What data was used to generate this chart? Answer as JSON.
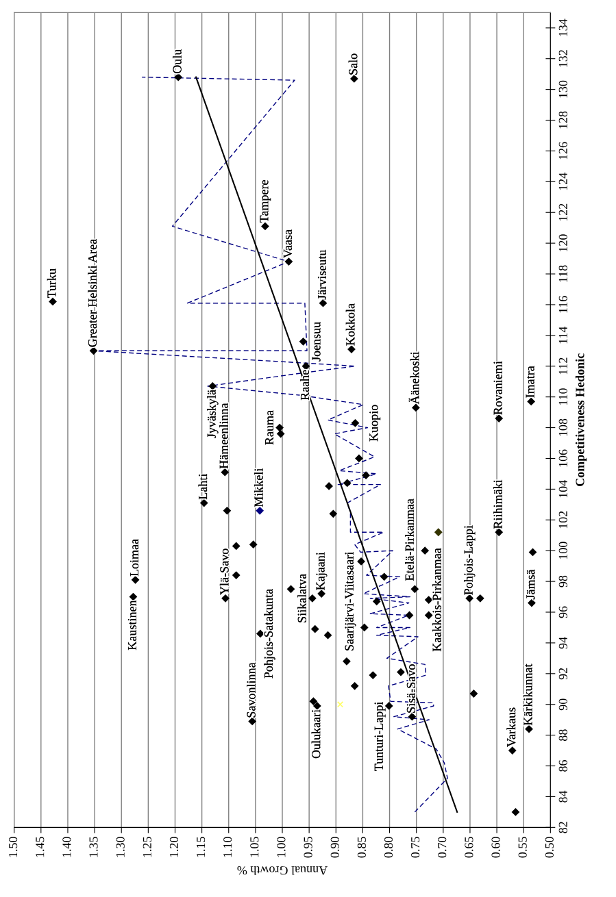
{
  "chart_data": {
    "type": "scatter",
    "xlabel": "Annual Growth %",
    "ylabel": "Competitiveness Hedonic",
    "xlim": [
      1.5,
      0.5
    ],
    "xticks": [
      {
        "value": 1.5,
        "label": "1.50"
      },
      {
        "value": 1.45,
        "label": "1.45"
      },
      {
        "value": 1.4,
        "label": "1.40"
      },
      {
        "value": 1.35,
        "label": "1.35"
      },
      {
        "value": 1.3,
        "label": "1.30"
      },
      {
        "value": 1.25,
        "label": "1.25"
      },
      {
        "value": 1.2,
        "label": "1.20"
      },
      {
        "value": 1.15,
        "label": "1.15"
      },
      {
        "value": 1.1,
        "label": "1.10"
      },
      {
        "value": 1.05,
        "label": "1.05"
      },
      {
        "value": 1.0,
        "label": "1.00"
      },
      {
        "value": 0.95,
        "label": "0.95"
      },
      {
        "value": 0.9,
        "label": "0.90"
      },
      {
        "value": 0.85,
        "label": "0.85"
      },
      {
        "value": 0.8,
        "label": "0.80"
      },
      {
        "value": 0.75,
        "label": "0.75"
      },
      {
        "value": 0.7,
        "label": "0.70"
      },
      {
        "value": 0.65,
        "label": "0.65"
      },
      {
        "value": 0.6,
        "label": "0.60"
      },
      {
        "value": 0.55,
        "label": "0.55"
      },
      {
        "value": 0.5,
        "label": "0.50"
      }
    ],
    "ylim": [
      82,
      135
    ],
    "yticks": [
      82,
      84,
      86,
      88,
      90,
      92,
      94,
      96,
      98,
      100,
      102,
      104,
      106,
      108,
      110,
      112,
      114,
      116,
      118,
      120,
      122,
      124,
      126,
      128,
      130,
      132,
      134
    ],
    "grid": "x",
    "series": [
      {
        "marker": "diamond",
        "x": [
          1.194,
          1.032,
          0.988,
          1.428,
          0.866,
          1.352,
          1.13,
          0.961,
          0.956,
          1.005,
          1.003,
          1.107,
          1.146,
          1.103,
          1.042,
          1.086,
          1.054,
          1.086,
          1.106,
          1.274,
          1.278,
          0.924,
          0.871,
          0.864,
          0.751,
          0.596,
          0.536,
          0.857,
          0.844,
          0.913,
          0.879,
          0.905,
          0.709,
          0.596,
          0.734,
          0.533,
          0.853,
          0.81,
          0.753,
          0.927,
          0.944,
          0.824,
          0.727,
          0.651,
          0.631,
          0.535,
          0.939,
          0.915,
          0.847,
          0.763,
          0.727,
          0.88,
          0.831,
          0.779,
          0.865,
          0.942,
          0.935,
          0.801,
          0.758,
          0.643,
          0.571,
          0.54,
          0.565,
          1.056,
          1.041,
          0.984
        ],
        "values": [
          130.8,
          121.1,
          118.8,
          116.2,
          130.7,
          113.0,
          110.7,
          113.6,
          112.0,
          108.0,
          107.6,
          105.1,
          103.1,
          102.6,
          102.6,
          100.3,
          100.4,
          98.4,
          96.9,
          98.1,
          97.0,
          116.1,
          113.1,
          108.3,
          109.3,
          108.6,
          109.7,
          106.0,
          104.9,
          104.2,
          104.4,
          102.4,
          101.2,
          101.2,
          100.0,
          99.9,
          99.3,
          98.3,
          97.5,
          97.2,
          96.9,
          96.7,
          96.8,
          96.9,
          96.9,
          96.6,
          94.9,
          94.5,
          95.0,
          95.8,
          95.8,
          92.8,
          91.9,
          92.1,
          91.2,
          90.2,
          89.9,
          89.9,
          89.2,
          90.7,
          87.0,
          88.4,
          83.0,
          88.9,
          94.6,
          97.5
        ],
        "colors": [
          "#000000",
          "#000000",
          "#000000",
          "#000000",
          "#000000",
          "#000000",
          "#000000",
          "#000000",
          "#000000",
          "#000000",
          "#000000",
          "#000000",
          "#000000",
          "#000000",
          "#000080",
          "#000000",
          "#000000",
          "#000000",
          "#000000",
          "#000000",
          "#000000",
          "#000000",
          "#000000",
          "#000000",
          "#000000",
          "#000000",
          "#000000",
          "#000000",
          "#000000",
          "#000000",
          "#000000",
          "#000000",
          "#333300",
          "#000000",
          "#000000",
          "#000000",
          "#000000",
          "#000000",
          "#000000",
          "#000000",
          "#000000",
          "#000000",
          "#000000",
          "#000000",
          "#000000",
          "#000000",
          "#000000",
          "#000000",
          "#000000",
          "#000000",
          "#000000",
          "#000000",
          "#000000",
          "#000000",
          "#000000",
          "#000000",
          "#000000",
          "#000000",
          "#000000",
          "#000000",
          "#000000",
          "#000000",
          "#000000",
          "#000000",
          "#000000",
          "#000000"
        ]
      },
      {
        "marker": "cross",
        "color": "#ffff66",
        "x": [
          0.892
        ],
        "values": [
          90.0
        ]
      },
      {
        "type": "line",
        "marker": "none",
        "line_style": "dashed",
        "color": "#000080",
        "x": [
          0.753,
          0.692,
          0.698,
          0.713,
          0.785,
          0.726,
          0.792,
          0.718,
          0.718,
          0.798,
          0.802,
          0.732,
          0.734,
          0.805,
          0.747,
          0.824,
          0.762,
          0.824,
          0.764,
          0.836,
          0.764,
          0.836,
          0.762,
          0.849,
          0.781,
          0.843,
          0.794,
          0.854,
          0.865,
          0.811,
          0.873,
          0.873,
          0.879,
          0.817,
          0.896,
          0.824,
          0.894,
          0.828,
          0.903,
          0.841,
          0.915,
          0.849,
          0.964,
          1.139,
          0.954,
          0.864,
          0.956,
          1.352,
          0.954,
          0.958,
          1.177,
          0.988,
          1.205,
          0.977,
          1.262
        ],
        "values": [
          83.0,
          85.2,
          86.2,
          87.1,
          88.4,
          89.0,
          89.2,
          89.9,
          90.1,
          90.2,
          91.2,
          91.9,
          92.6,
          93.0,
          94.4,
          94.5,
          95.0,
          95.0,
          95.8,
          95.9,
          96.6,
          96.9,
          97.0,
          97.2,
          98.3,
          98.4,
          100.0,
          99.9,
          100.4,
          101.2,
          101.2,
          102.5,
          103.1,
          104.3,
          104.3,
          105.0,
          105.2,
          106.1,
          107.6,
          108.0,
          108.5,
          109.5,
          110.1,
          110.7,
          111.6,
          112.0,
          112.2,
          113.0,
          113.0,
          116.1,
          116.1,
          118.8,
          121.1,
          130.6,
          130.8
        ]
      },
      {
        "type": "line",
        "marker": "none",
        "line_style": "solid",
        "color": "#000000",
        "x": [
          0.674,
          1.161
        ],
        "values": [
          83.0,
          130.8
        ]
      }
    ],
    "annotations": [
      {
        "text": "Turku",
        "x": 1.428,
        "y": 116.2
      },
      {
        "text": "Greater Helsinki Area",
        "x": 1.352,
        "y": 113.0
      },
      {
        "text": "Oulu",
        "x": 1.194,
        "y": 130.8
      },
      {
        "text": "Tampere",
        "x": 1.032,
        "y": 121.1
      },
      {
        "text": "Vaasa",
        "x": 0.988,
        "y": 118.8
      },
      {
        "text": "Järviseutu",
        "x": 0.924,
        "y": 116.1
      },
      {
        "text": "Salo",
        "x": 0.866,
        "y": 130.7
      },
      {
        "text": "Jyväskylä",
        "x": 1.13,
        "y": 110.7
      },
      {
        "text": "Hämeenlinna",
        "x": 1.107,
        "y": 105.1
      },
      {
        "text": "Lahti",
        "x": 1.146,
        "y": 103.1
      },
      {
        "text": "Rauma",
        "x": 1.005,
        "y": 108.0
      },
      {
        "text": "Mikkeli",
        "x": 1.042,
        "y": 102.6
      },
      {
        "text": "Pohjois-Satakunta",
        "x": 1.041,
        "y": 94.6
      },
      {
        "text": "Ylä-Savo",
        "x": 1.106,
        "y": 96.9
      },
      {
        "text": "Loimaa",
        "x": 1.274,
        "y": 98.1
      },
      {
        "text": "Kaustinen",
        "x": 1.278,
        "y": 97.0
      },
      {
        "text": "Savonlinna",
        "x": 1.056,
        "y": 88.9
      },
      {
        "text": "Joensuu",
        "x": 0.961,
        "y": 113.6
      },
      {
        "text": "Raahe",
        "x": 0.956,
        "y": 112.0
      },
      {
        "text": "Kokkola",
        "x": 0.871,
        "y": 113.1
      },
      {
        "text": "Kuopio",
        "x": 0.864,
        "y": 108.3
      },
      {
        "text": "Äänekoski",
        "x": 0.751,
        "y": 109.3
      },
      {
        "text": "Rovaniemi",
        "x": 0.596,
        "y": 108.6
      },
      {
        "text": "Imatra",
        "x": 0.536,
        "y": 109.7
      },
      {
        "text": "Riihimäki",
        "x": 0.596,
        "y": 101.2
      },
      {
        "text": "Kaakkois-Pirkanmaa",
        "x": 0.727,
        "y": 96.8
      },
      {
        "text": "Etelä-Pirkanmaa",
        "x": 0.81,
        "y": 98.3
      },
      {
        "text": "Pohjois-Lappi",
        "x": 0.651,
        "y": 96.9
      },
      {
        "text": "Jämsä",
        "x": 0.535,
        "y": 96.6
      },
      {
        "text": "Siikalatva",
        "x": 0.944,
        "y": 96.9
      },
      {
        "text": "Kajaani",
        "x": 0.927,
        "y": 97.2
      },
      {
        "text": "Saarijärvi-Viitasaari",
        "x": 0.824,
        "y": 96.7
      },
      {
        "text": "Tunturi-Lappi",
        "x": 0.801,
        "y": 89.9
      },
      {
        "text": "Sisä-Savo",
        "x": 0.758,
        "y": 89.2
      },
      {
        "text": "Oulukaari",
        "x": 0.935,
        "y": 89.9
      },
      {
        "text": "Varkaus",
        "x": 0.571,
        "y": 87.0
      },
      {
        "text": "Kärkikunnat",
        "x": 0.54,
        "y": 88.4
      }
    ]
  }
}
